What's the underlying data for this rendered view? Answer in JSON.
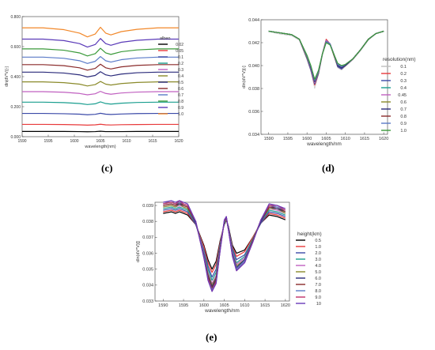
{
  "figure": {
    "panel_labels": [
      "(c)",
      "(d)",
      "(e)"
    ]
  },
  "chart_data": [
    {
      "type": "line",
      "panel": "(c)",
      "xlabel": "wavelength(nm)",
      "ylabel": "dln(dV*V)[-]",
      "xlim": [
        1590,
        1620
      ],
      "ylim": [
        0.0,
        0.8
      ],
      "xticks": [
        "1590",
        "1595",
        "1600",
        "1605",
        "1610",
        "1615",
        "1620"
      ],
      "yticks": [
        "0.000",
        "0.200",
        "0.400",
        "0.600",
        "0.800"
      ],
      "legend_title": "albeo",
      "legend_position": "right",
      "grid": false,
      "x": [
        1590,
        1594,
        1598,
        1601,
        1602.5,
        1604,
        1605,
        1606,
        1607,
        1609,
        1612,
        1616,
        1620
      ],
      "series": [
        {
          "name": "0.02",
          "color": "#000000",
          "values": [
            0.035,
            0.035,
            0.035,
            0.034,
            0.033,
            0.034,
            0.036,
            0.034,
            0.034,
            0.034,
            0.035,
            0.035,
            0.035
          ]
        },
        {
          "name": "0.05",
          "color": "#e8393a",
          "values": [
            0.082,
            0.082,
            0.081,
            0.079,
            0.077,
            0.079,
            0.083,
            0.079,
            0.078,
            0.08,
            0.081,
            0.082,
            0.082
          ]
        },
        {
          "name": "0.1",
          "color": "#3b4aa8",
          "values": [
            0.155,
            0.155,
            0.153,
            0.15,
            0.146,
            0.149,
            0.156,
            0.15,
            0.148,
            0.151,
            0.154,
            0.155,
            0.155
          ]
        },
        {
          "name": "0.2",
          "color": "#1a9e8f",
          "values": [
            0.23,
            0.23,
            0.227,
            0.221,
            0.214,
            0.219,
            0.232,
            0.221,
            0.217,
            0.223,
            0.228,
            0.23,
            0.23
          ]
        },
        {
          "name": "0.3",
          "color": "#c060c0",
          "values": [
            0.3,
            0.3,
            0.296,
            0.288,
            0.279,
            0.286,
            0.302,
            0.288,
            0.283,
            0.291,
            0.297,
            0.3,
            0.3
          ]
        },
        {
          "name": "0.4",
          "color": "#8a8a2a",
          "values": [
            0.365,
            0.365,
            0.36,
            0.35,
            0.338,
            0.347,
            0.368,
            0.35,
            0.344,
            0.354,
            0.361,
            0.365,
            0.365
          ]
        },
        {
          "name": "0.5",
          "color": "#2a2a7a",
          "values": [
            0.43,
            0.43,
            0.424,
            0.412,
            0.398,
            0.408,
            0.433,
            0.412,
            0.405,
            0.417,
            0.426,
            0.43,
            0.43
          ]
        },
        {
          "name": "0.6",
          "color": "#8a2a2a",
          "values": [
            0.48,
            0.48,
            0.473,
            0.459,
            0.443,
            0.455,
            0.483,
            0.459,
            0.451,
            0.465,
            0.475,
            0.48,
            0.48
          ]
        },
        {
          "name": "0.7",
          "color": "#5a7ac8",
          "values": [
            0.53,
            0.53,
            0.522,
            0.506,
            0.488,
            0.502,
            0.534,
            0.506,
            0.497,
            0.513,
            0.524,
            0.53,
            0.53
          ]
        },
        {
          "name": "0.8",
          "color": "#3a9a3a",
          "values": [
            0.585,
            0.585,
            0.576,
            0.558,
            0.538,
            0.553,
            0.589,
            0.558,
            0.548,
            0.566,
            0.578,
            0.585,
            0.585
          ]
        },
        {
          "name": "0.9",
          "color": "#5a3ab8",
          "values": [
            0.65,
            0.65,
            0.64,
            0.62,
            0.597,
            0.614,
            0.654,
            0.62,
            0.609,
            0.629,
            0.642,
            0.65,
            0.65
          ]
        },
        {
          "name": "1.0",
          "color": "#f2882a",
          "values": [
            0.725,
            0.725,
            0.713,
            0.69,
            0.665,
            0.684,
            0.729,
            0.69,
            0.678,
            0.7,
            0.715,
            0.725,
            0.725
          ]
        }
      ]
    },
    {
      "type": "line",
      "panel": "(d)",
      "xlabel": "wavelength/nm",
      "ylabel": "dln(dV*V)[-]",
      "xlim": [
        1588,
        1621
      ],
      "ylim": [
        0.034,
        0.044
      ],
      "xticks": [
        "1590",
        "1595",
        "1600",
        "1605",
        "1610",
        "1615",
        "1620"
      ],
      "yticks": [
        "0.034",
        "0.036",
        "0.038",
        "0.040",
        "0.042",
        "0.044"
      ],
      "legend_title": "resolution(nm)",
      "legend_position": "right",
      "grid": false,
      "x": [
        1590,
        1592,
        1594,
        1596,
        1598,
        1600,
        1601,
        1602,
        1603,
        1604,
        1605,
        1606,
        1607,
        1608,
        1609,
        1610,
        1612,
        1614,
        1616,
        1618,
        1620
      ],
      "series": [
        {
          "name": "0.1",
          "color": "#bdbdbd",
          "values": [
            0.043,
            0.0428,
            0.0427,
            0.0426,
            0.0422,
            0.0405,
            0.0395,
            0.038,
            0.0392,
            0.041,
            0.0422,
            0.0418,
            0.0408,
            0.0398,
            0.0396,
            0.0399,
            0.0405,
            0.0413,
            0.0422,
            0.0428,
            0.043
          ]
        },
        {
          "name": "0.2",
          "color": "#e8393a",
          "values": [
            0.043,
            0.0429,
            0.0428,
            0.0427,
            0.0423,
            0.0406,
            0.0396,
            0.0383,
            0.0393,
            0.041,
            0.0423,
            0.0419,
            0.0409,
            0.0399,
            0.0397,
            0.04,
            0.0406,
            0.0414,
            0.0423,
            0.0428,
            0.043
          ]
        },
        {
          "name": "0.3",
          "color": "#3b4aa8",
          "values": [
            0.043,
            0.0429,
            0.0428,
            0.0427,
            0.0423,
            0.0406,
            0.0396,
            0.0384,
            0.0393,
            0.041,
            0.0422,
            0.0419,
            0.0409,
            0.0399,
            0.0397,
            0.04,
            0.0406,
            0.0414,
            0.0423,
            0.0428,
            0.043
          ]
        },
        {
          "name": "0.4",
          "color": "#1a9e8f",
          "values": [
            0.043,
            0.0429,
            0.0428,
            0.0427,
            0.0423,
            0.0407,
            0.0397,
            0.0385,
            0.0394,
            0.041,
            0.0422,
            0.0419,
            0.0409,
            0.04,
            0.0398,
            0.04,
            0.0406,
            0.0414,
            0.0423,
            0.0428,
            0.043
          ]
        },
        {
          "name": "0.45",
          "color": "#c060c0",
          "values": [
            0.043,
            0.0429,
            0.0428,
            0.0427,
            0.0423,
            0.0407,
            0.0397,
            0.0385,
            0.0394,
            0.041,
            0.0422,
            0.0419,
            0.0409,
            0.04,
            0.0398,
            0.04,
            0.0406,
            0.0414,
            0.0423,
            0.0428,
            0.043
          ]
        },
        {
          "name": "0.6",
          "color": "#8a8a2a",
          "values": [
            0.043,
            0.0429,
            0.0428,
            0.0427,
            0.0423,
            0.0407,
            0.0398,
            0.0386,
            0.0394,
            0.041,
            0.0421,
            0.0419,
            0.0409,
            0.04,
            0.0398,
            0.04,
            0.0406,
            0.0414,
            0.0423,
            0.0428,
            0.043
          ]
        },
        {
          "name": "0.7",
          "color": "#2a2a7a",
          "values": [
            0.043,
            0.0429,
            0.0428,
            0.0427,
            0.0423,
            0.0408,
            0.0398,
            0.0386,
            0.0395,
            0.041,
            0.0421,
            0.0419,
            0.041,
            0.04,
            0.0398,
            0.04,
            0.0406,
            0.0414,
            0.0423,
            0.0428,
            0.043
          ]
        },
        {
          "name": "0.8",
          "color": "#8a2a2a",
          "values": [
            0.043,
            0.0429,
            0.0428,
            0.0427,
            0.0423,
            0.0408,
            0.0399,
            0.0387,
            0.0395,
            0.041,
            0.0421,
            0.0419,
            0.041,
            0.0401,
            0.0399,
            0.0401,
            0.0406,
            0.0414,
            0.0423,
            0.0428,
            0.043
          ]
        },
        {
          "name": "0.9",
          "color": "#5a7ac8",
          "values": [
            0.043,
            0.0429,
            0.0428,
            0.0427,
            0.0423,
            0.0408,
            0.0399,
            0.0387,
            0.0395,
            0.041,
            0.0421,
            0.0419,
            0.041,
            0.0401,
            0.0399,
            0.0401,
            0.0406,
            0.0414,
            0.0423,
            0.0428,
            0.043
          ]
        },
        {
          "name": "1.0",
          "color": "#3a9a3a",
          "values": [
            0.043,
            0.0429,
            0.0428,
            0.0427,
            0.0423,
            0.0409,
            0.04,
            0.0388,
            0.0396,
            0.041,
            0.042,
            0.0418,
            0.041,
            0.0402,
            0.04,
            0.0401,
            0.0406,
            0.0414,
            0.0423,
            0.0428,
            0.043
          ]
        }
      ]
    },
    {
      "type": "line",
      "panel": "(e)",
      "xlabel": "wavelength/nm",
      "ylabel": "dln(dV*V)[]",
      "xlim": [
        1588,
        1621
      ],
      "ylim": [
        0.033,
        0.0392
      ],
      "xticks": [
        "1590",
        "1595",
        "1600",
        "1605",
        "1610",
        "1615",
        "1620"
      ],
      "yticks": [
        "0.033",
        "0.034",
        "0.035",
        "0.036",
        "0.037",
        "0.038",
        "0.039"
      ],
      "legend_title": "height(km)",
      "legend_position": "right",
      "grid": false,
      "x": [
        1590,
        1592,
        1593,
        1594,
        1595,
        1596,
        1598,
        1600,
        1601,
        1602,
        1603,
        1604,
        1605,
        1605.5,
        1606,
        1607,
        1608,
        1610,
        1612,
        1614,
        1616,
        1618,
        1620
      ],
      "series": [
        {
          "name": "0.5",
          "color": "#000000",
          "values": [
            0.0385,
            0.0386,
            0.0385,
            0.0386,
            0.0385,
            0.0384,
            0.0378,
            0.0365,
            0.0356,
            0.035,
            0.0355,
            0.0368,
            0.0378,
            0.0381,
            0.0377,
            0.0365,
            0.036,
            0.0362,
            0.037,
            0.0379,
            0.0384,
            0.0383,
            0.0381
          ]
        },
        {
          "name": "1.0",
          "color": "#e8393a",
          "values": [
            0.0386,
            0.0387,
            0.0386,
            0.0387,
            0.0386,
            0.0385,
            0.0378,
            0.0364,
            0.0354,
            0.0348,
            0.0353,
            0.0367,
            0.0379,
            0.0381,
            0.0376,
            0.0364,
            0.0358,
            0.0361,
            0.037,
            0.0379,
            0.0385,
            0.0384,
            0.0382
          ]
        },
        {
          "name": "2.0",
          "color": "#3b4aa8",
          "values": [
            0.0387,
            0.0388,
            0.0387,
            0.0388,
            0.0387,
            0.0386,
            0.0378,
            0.0362,
            0.0352,
            0.0345,
            0.035,
            0.0366,
            0.0379,
            0.0382,
            0.0376,
            0.0363,
            0.0356,
            0.0359,
            0.0369,
            0.0379,
            0.0386,
            0.0385,
            0.0383
          ]
        },
        {
          "name": "3.0",
          "color": "#1a9e8f",
          "values": [
            0.0388,
            0.0389,
            0.0388,
            0.0389,
            0.0388,
            0.0387,
            0.0379,
            0.0361,
            0.035,
            0.0343,
            0.0348,
            0.0365,
            0.0379,
            0.0382,
            0.0376,
            0.0362,
            0.0354,
            0.0358,
            0.0369,
            0.038,
            0.0387,
            0.0386,
            0.0384
          ]
        },
        {
          "name": "4.0",
          "color": "#c060c0",
          "values": [
            0.0389,
            0.039,
            0.0389,
            0.039,
            0.0389,
            0.0388,
            0.0379,
            0.036,
            0.0348,
            0.0341,
            0.0346,
            0.0364,
            0.038,
            0.0382,
            0.0376,
            0.0361,
            0.0353,
            0.0357,
            0.0368,
            0.038,
            0.0388,
            0.0387,
            0.0385
          ]
        },
        {
          "name": "5.0",
          "color": "#8a8a2a",
          "values": [
            0.0389,
            0.039,
            0.0389,
            0.0391,
            0.0389,
            0.0388,
            0.0379,
            0.0359,
            0.0347,
            0.034,
            0.0345,
            0.0364,
            0.038,
            0.0382,
            0.0375,
            0.036,
            0.0352,
            0.0356,
            0.0368,
            0.038,
            0.0388,
            0.0388,
            0.0385
          ]
        },
        {
          "name": "6.0",
          "color": "#2a2a7a",
          "values": [
            0.039,
            0.0391,
            0.039,
            0.0391,
            0.039,
            0.0389,
            0.0379,
            0.0359,
            0.0346,
            0.0339,
            0.0344,
            0.0363,
            0.038,
            0.0382,
            0.0375,
            0.036,
            0.0351,
            0.0356,
            0.0368,
            0.038,
            0.0389,
            0.0388,
            0.0386
          ]
        },
        {
          "name": "7.0",
          "color": "#8a2a2a",
          "values": [
            0.039,
            0.0391,
            0.039,
            0.0392,
            0.039,
            0.0389,
            0.038,
            0.0358,
            0.0345,
            0.0338,
            0.0343,
            0.0363,
            0.038,
            0.0383,
            0.0375,
            0.0359,
            0.035,
            0.0355,
            0.0368,
            0.0381,
            0.0389,
            0.0389,
            0.0386
          ]
        },
        {
          "name": "8.0",
          "color": "#5a7ac8",
          "values": [
            0.0391,
            0.0392,
            0.0391,
            0.0392,
            0.0391,
            0.039,
            0.038,
            0.0358,
            0.0344,
            0.0337,
            0.0342,
            0.0362,
            0.038,
            0.0383,
            0.0375,
            0.0359,
            0.035,
            0.0355,
            0.0367,
            0.0381,
            0.039,
            0.0389,
            0.0387
          ]
        },
        {
          "name": "9.0",
          "color": "#c0306a",
          "values": [
            0.0391,
            0.0392,
            0.0391,
            0.0393,
            0.0391,
            0.039,
            0.038,
            0.0357,
            0.0344,
            0.0336,
            0.0342,
            0.0362,
            0.038,
            0.0383,
            0.0375,
            0.0358,
            0.0349,
            0.0354,
            0.0367,
            0.0381,
            0.039,
            0.039,
            0.0387
          ]
        },
        {
          "name": "10",
          "color": "#6a3ab8",
          "values": [
            0.0392,
            0.0393,
            0.0392,
            0.0393,
            0.0392,
            0.0391,
            0.038,
            0.0357,
            0.0343,
            0.0336,
            0.0341,
            0.0362,
            0.0381,
            0.0383,
            0.0375,
            0.0358,
            0.0349,
            0.0354,
            0.0367,
            0.0381,
            0.0391,
            0.039,
            0.0388
          ]
        }
      ]
    }
  ]
}
